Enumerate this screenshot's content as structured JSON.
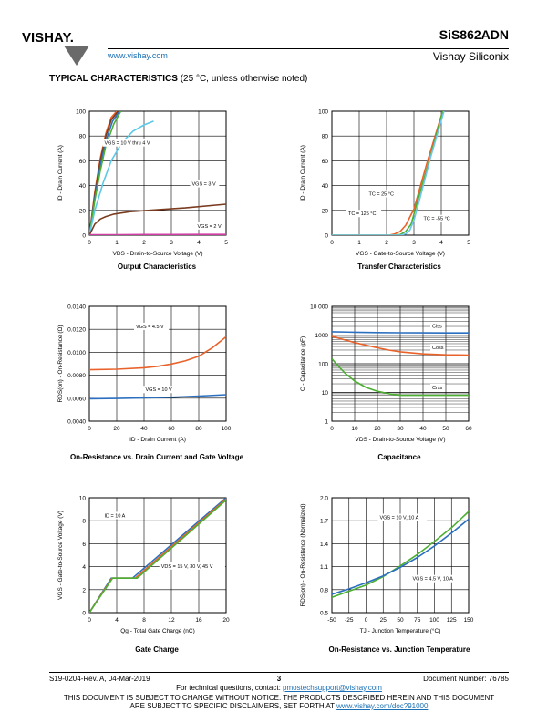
{
  "header": {
    "logo_text": "VISHAY.",
    "website": "www.vishay.com",
    "part_number": "SiS862ADN",
    "company": "Vishay Siliconix"
  },
  "section": {
    "title": "TYPICAL CHARACTERISTICS",
    "subtitle": "(25 °C, unless otherwise noted)"
  },
  "colors": {
    "brown": "#7a3b1e",
    "orange": "#e8622a",
    "cyan": "#5bc8e8",
    "blue": "#2b6fc0",
    "green": "#4caf32",
    "magenta": "#d13fa6",
    "lightblue": "#6fc6ee",
    "darkgreen": "#3a8f2c"
  },
  "charts": [
    {
      "id": "output",
      "caption": "Output Characteristics",
      "xlabel": "VDS - Drain-to-Source Voltage (V)",
      "ylabel": "ID - Drain Current (A)",
      "xlim": [
        0,
        5
      ],
      "ylim": [
        0,
        100
      ],
      "xticks": [
        "0",
        "1",
        "2",
        "3",
        "4",
        "5"
      ],
      "yticks": [
        "0",
        "20",
        "40",
        "60",
        "80",
        "100"
      ],
      "annotations": [
        {
          "text": "VGS = 10 V thru 4 V",
          "x": 0.55,
          "y": 73
        },
        {
          "text": "VGS = 3 V",
          "x": 3.75,
          "y": 40
        },
        {
          "text": "VGS = 2 V",
          "x": 3.95,
          "y": 6
        }
      ],
      "series": [
        {
          "color": "orange",
          "x": [
            0,
            0.2,
            0.4,
            0.6,
            0.8,
            1.0
          ],
          "y": [
            0,
            35,
            62,
            82,
            95,
            100
          ]
        },
        {
          "color": "brown",
          "x": [
            0,
            0.2,
            0.4,
            0.6,
            0.8,
            1.05
          ],
          "y": [
            0,
            33,
            60,
            80,
            93,
            100
          ]
        },
        {
          "color": "blue",
          "x": [
            0,
            0.2,
            0.4,
            0.6,
            0.85,
            1.1
          ],
          "y": [
            0,
            30,
            56,
            76,
            92,
            100
          ]
        },
        {
          "color": "green",
          "x": [
            0,
            0.2,
            0.4,
            0.6,
            0.9,
            1.15
          ],
          "y": [
            0,
            28,
            52,
            72,
            90,
            100
          ]
        },
        {
          "color": "cyan",
          "x": [
            0,
            0.2,
            0.5,
            0.8,
            1.2,
            1.6,
            2.0,
            2.35
          ],
          "y": [
            0,
            20,
            42,
            60,
            75,
            84,
            89,
            92
          ]
        },
        {
          "color": "brown",
          "x": [
            0,
            0.2,
            0.4,
            0.6,
            0.9,
            1.5,
            2.5,
            3.5,
            5.0
          ],
          "y": [
            0,
            9,
            13,
            15,
            17,
            19,
            20.5,
            22,
            25
          ]
        },
        {
          "color": "magenta",
          "x": [
            0,
            1,
            2,
            3,
            4,
            5
          ],
          "y": [
            0.3,
            0.4,
            0.5,
            0.5,
            0.6,
            0.6
          ]
        }
      ]
    },
    {
      "id": "transfer",
      "caption": "Transfer Characteristics",
      "xlabel": "VGS - Gate-to-Source Voltage (V)",
      "ylabel": "ID - Drain Current (A)",
      "xlim": [
        0,
        5
      ],
      "ylim": [
        0,
        100
      ],
      "xticks": [
        "0",
        "1",
        "2",
        "3",
        "4",
        "5"
      ],
      "yticks": [
        "0",
        "20",
        "40",
        "60",
        "80",
        "100"
      ],
      "annotations": [
        {
          "text": "TC = 25 °C",
          "x": 1.35,
          "y": 32
        },
        {
          "text": "TC = 125 °C",
          "x": 0.6,
          "y": 16
        },
        {
          "text": "TC = -55 °C",
          "x": 3.35,
          "y": 12
        }
      ],
      "series": [
        {
          "color": "orange",
          "x": [
            0,
            2.1,
            2.3,
            2.5,
            2.7,
            3.0,
            3.5,
            4.05
          ],
          "y": [
            0,
            0,
            1,
            3,
            8,
            21,
            60,
            100
          ]
        },
        {
          "color": "green",
          "x": [
            0,
            2.3,
            2.5,
            2.7,
            2.9,
            3.1,
            3.6,
            4.05
          ],
          "y": [
            0,
            0,
            0.5,
            3,
            9,
            25,
            63,
            100
          ]
        },
        {
          "color": "lightblue",
          "x": [
            0,
            2.5,
            2.7,
            2.85,
            3.0,
            3.2,
            3.6,
            4.1
          ],
          "y": [
            0,
            0,
            1,
            4,
            12,
            28,
            62,
            100
          ]
        }
      ]
    },
    {
      "id": "rdson-id",
      "caption": "On-Resistance vs. Drain Current and Gate Voltage",
      "xlabel": "ID - Drain Current (A)",
      "ylabel": "RDS(on) - On-Resistance (Ω)",
      "xlim": [
        0,
        100
      ],
      "ylim": [
        0.004,
        0.014
      ],
      "xticks": [
        "0",
        "20",
        "40",
        "60",
        "80",
        "100"
      ],
      "yticks": [
        "0.0040",
        "0.0060",
        "0.0080",
        "0.0100",
        "0.0120",
        "0.0140"
      ],
      "annotations": [
        {
          "text": "VGS = 4.5 V",
          "x": 34,
          "y": 0.0121
        },
        {
          "text": "VGS = 10 V",
          "x": 41,
          "y": 0.0066
        }
      ],
      "series": [
        {
          "color": "orange",
          "x": [
            0,
            20,
            40,
            50,
            60,
            70,
            80,
            90,
            100
          ],
          "y": [
            0.00848,
            0.00852,
            0.00865,
            0.00878,
            0.00898,
            0.00925,
            0.00965,
            0.0104,
            0.01135
          ]
        },
        {
          "color": "blue",
          "x": [
            0,
            20,
            40,
            60,
            80,
            100
          ],
          "y": [
            0.00595,
            0.00598,
            0.00602,
            0.00608,
            0.00618,
            0.0063
          ]
        }
      ]
    },
    {
      "id": "capacitance",
      "caption": "Capacitance",
      "xlabel": "VDS - Drain-to-Source Voltage (V)",
      "ylabel": "C - Capacitance (pF)",
      "xlim": [
        0,
        60
      ],
      "ylim": [
        1,
        10000
      ],
      "yscale": "log",
      "xticks": [
        "0",
        "10",
        "20",
        "30",
        "40",
        "50",
        "60"
      ],
      "yticks": [
        "1",
        "10",
        "100",
        "1000",
        "10 000"
      ],
      "annotations": [
        {
          "text": "Ciss",
          "x": 44,
          "y": 1800
        },
        {
          "text": "Coss",
          "x": 44,
          "y": 320
        },
        {
          "text": "Crss",
          "x": 44,
          "y": 13
        }
      ],
      "series": [
        {
          "color": "blue",
          "x": [
            0,
            10,
            20,
            30,
            40,
            50,
            60
          ],
          "y": [
            1300,
            1250,
            1220,
            1200,
            1190,
            1180,
            1180
          ]
        },
        {
          "color": "orange",
          "x": [
            0,
            5,
            10,
            15,
            20,
            25,
            30,
            40,
            50,
            60
          ],
          "y": [
            900,
            700,
            550,
            440,
            360,
            300,
            260,
            220,
            205,
            200
          ]
        },
        {
          "color": "green",
          "x": [
            0,
            3,
            6,
            10,
            15,
            20,
            25,
            30,
            40,
            50,
            60
          ],
          "y": [
            150,
            80,
            45,
            25,
            15,
            11,
            9,
            8,
            8,
            8,
            8
          ]
        }
      ]
    },
    {
      "id": "gate-charge",
      "caption": "Gate Charge",
      "xlabel": "Qg - Total Gate Charge (nC)",
      "ylabel": "VGS - Gate-to-Source Voltage (V)",
      "xlim": [
        0,
        20
      ],
      "ylim": [
        0,
        10
      ],
      "xticks": [
        "0",
        "4",
        "8",
        "12",
        "16",
        "20"
      ],
      "yticks": [
        "0",
        "2",
        "4",
        "6",
        "8",
        "10"
      ],
      "annotations": [
        {
          "text": "ID = 10 A",
          "x": 2.2,
          "y": 8.3
        },
        {
          "text": "VDS = 15 V, 30 V, 45 V",
          "x": 10.5,
          "y": 3.9
        }
      ],
      "series": [
        {
          "color": "blue",
          "x": [
            0,
            3.2,
            6.3,
            20
          ],
          "y": [
            0,
            3.0,
            3.0,
            10
          ]
        },
        {
          "color": "orange",
          "x": [
            0,
            3.3,
            6.7,
            20
          ],
          "y": [
            0,
            3.0,
            3.0,
            9.9
          ]
        },
        {
          "color": "green",
          "x": [
            0,
            3.4,
            7.0,
            20
          ],
          "y": [
            0,
            3.0,
            3.0,
            9.8
          ]
        }
      ]
    },
    {
      "id": "rdson-tj",
      "caption": "On-Resistance vs. Junction Temperature",
      "xlabel": "TJ - Junction Temperature (°C)",
      "ylabel": "RDS(on) - On-Resistance (Normalized)",
      "xlim": [
        -50,
        150
      ],
      "ylim": [
        0.5,
        2.0
      ],
      "xticks": [
        "-50",
        "-25",
        "0",
        "25",
        "50",
        "75",
        "100",
        "125",
        "150"
      ],
      "yticks": [
        "0.5",
        "0.8",
        "1.1",
        "1.4",
        "1.7",
        "2.0"
      ],
      "annotations": [
        {
          "text": "VGS = 10 V, 10 A",
          "x": 20,
          "y": 1.72
        },
        {
          "text": "VGS = 4.5 V, 10 A",
          "x": 68,
          "y": 0.92
        }
      ],
      "series": [
        {
          "color": "green",
          "x": [
            -50,
            -25,
            0,
            25,
            50,
            75,
            100,
            125,
            150
          ],
          "y": [
            0.7,
            0.78,
            0.86,
            0.97,
            1.11,
            1.26,
            1.43,
            1.61,
            1.82
          ]
        },
        {
          "color": "blue",
          "x": [
            -50,
            -25,
            0,
            25,
            50,
            75,
            100,
            125,
            150
          ],
          "y": [
            0.74,
            0.81,
            0.89,
            0.98,
            1.09,
            1.22,
            1.37,
            1.54,
            1.72
          ]
        }
      ]
    }
  ],
  "footer": {
    "revision": "S19-0204-Rev. A, 04-Mar-2019",
    "page": "3",
    "document_number": "Document Number: 76785",
    "contact_prefix": "For technical questions, contact: ",
    "contact_email": "pmostechsupport@vishay.com",
    "disclaimer_line1": "THIS DOCUMENT IS SUBJECT TO CHANGE WITHOUT NOTICE. THE PRODUCTS DESCRIBED HEREIN AND THIS DOCUMENT",
    "disclaimer_line2_prefix": "ARE SUBJECT TO SPECIFIC DISCLAIMERS, SET FORTH AT ",
    "disclaimer_link": "www.vishay.com/doc?91000"
  }
}
